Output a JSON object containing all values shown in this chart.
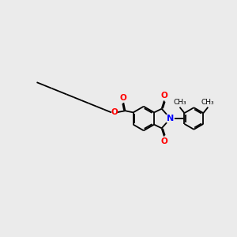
{
  "background_color": "#ebebeb",
  "bond_color": "black",
  "N_color": "blue",
  "O_color": "red",
  "lw": 1.3,
  "fs": 7.5,
  "figsize": [
    3.0,
    3.0
  ],
  "dpi": 100,
  "xlim": [
    -8.5,
    5.5
  ],
  "ylim": [
    -3.0,
    3.0
  ]
}
